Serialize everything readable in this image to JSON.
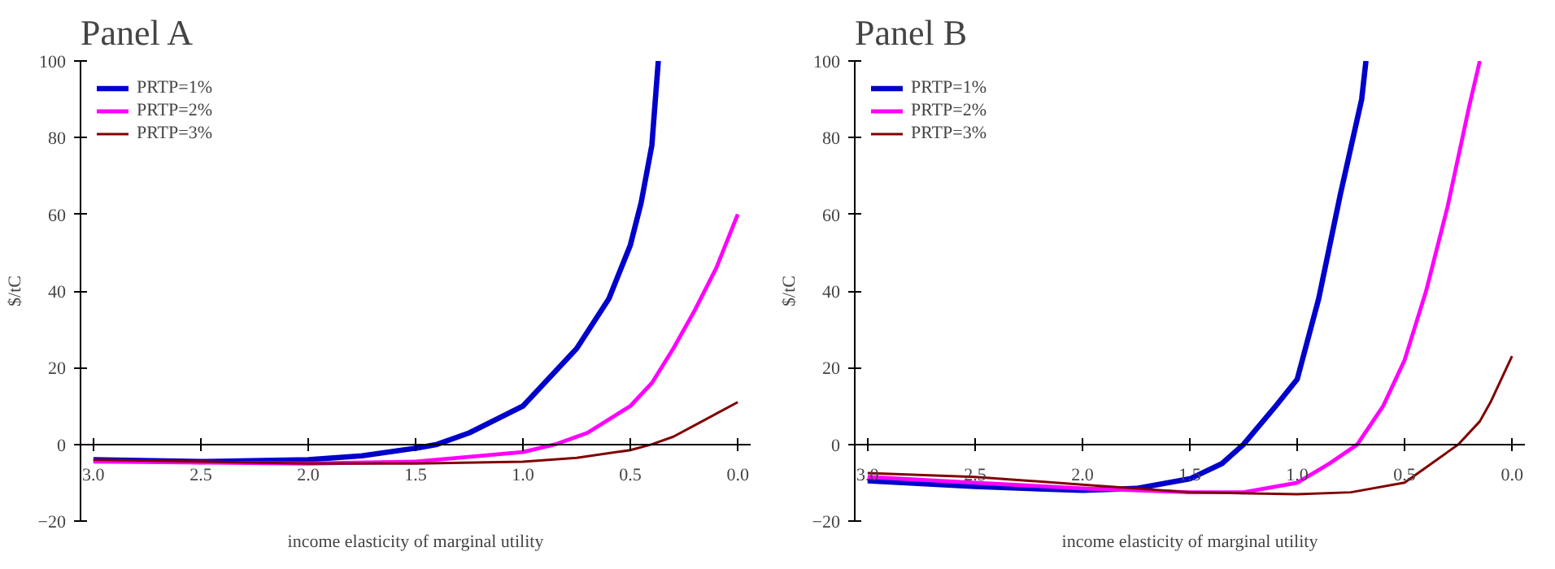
{
  "chart_data": [
    {
      "type": "line",
      "title": "Panel A",
      "xlabel": "income elasticity of marginal utility",
      "ylabel": "$/tC",
      "xlim": [
        3.06,
        -0.06
      ],
      "ylim": [
        -20,
        100
      ],
      "xticks": [
        {
          "value": 3.0,
          "label": "3.0"
        },
        2.5,
        {
          "value": 2.0,
          "label": "2.0"
        },
        1.5,
        {
          "value": 1.0,
          "label": "1.0"
        },
        0.5,
        {
          "value": 0.0,
          "label": "0.0"
        }
      ],
      "yticks": [
        -20,
        0,
        20,
        40,
        60,
        80,
        100
      ],
      "grid": false,
      "legend": "top left",
      "line_style": "solid",
      "marker": "none",
      "series": [
        {
          "name": "PRTP=1%",
          "color": "#0000cc",
          "x": [
            3.0,
            2.5,
            2.0,
            1.75,
            1.5,
            1.4,
            1.25,
            1.0,
            0.75,
            0.6,
            0.5,
            0.45,
            0.4,
            0.37
          ],
          "values": [
            -4,
            -4.5,
            -4,
            -3,
            -1,
            0,
            3,
            10,
            25,
            38,
            52,
            63,
            78,
            100
          ]
        },
        {
          "name": "PRTP=2%",
          "color": "#ff00ff",
          "x": [
            3.0,
            2.0,
            1.5,
            1.0,
            0.85,
            0.7,
            0.5,
            0.4,
            0.3,
            0.2,
            0.1,
            0.0
          ],
          "values": [
            -4.5,
            -5,
            -4.5,
            -2,
            0,
            3,
            10,
            16,
            25,
            35,
            46,
            60
          ]
        },
        {
          "name": "PRTP=3%",
          "color": "#800000",
          "x": [
            3.0,
            2.0,
            1.5,
            1.0,
            0.75,
            0.5,
            0.4,
            0.3,
            0.2,
            0.1,
            0.0
          ],
          "values": [
            -4,
            -5,
            -5,
            -4.5,
            -3.5,
            -1.5,
            0,
            2,
            5,
            8,
            11
          ]
        }
      ]
    },
    {
      "type": "line",
      "title": "Panel B",
      "xlabel": "income elasticity of marginal utility",
      "ylabel": "$/tC",
      "xlim": [
        3.06,
        -0.06
      ],
      "ylim": [
        -20,
        100
      ],
      "xticks": [
        {
          "value": 3.0,
          "label": "3.0"
        },
        2.5,
        {
          "value": 2.0,
          "label": "2.0"
        },
        1.5,
        {
          "value": 1.0,
          "label": "1.0"
        },
        0.5,
        {
          "value": 0.0,
          "label": "0.0"
        }
      ],
      "yticks": [
        -20,
        0,
        20,
        40,
        60,
        80,
        100
      ],
      "grid": false,
      "legend": "top left",
      "line_style": "solid",
      "marker": "none",
      "series": [
        {
          "name": "PRTP=1%",
          "color": "#0000cc",
          "x": [
            3.0,
            2.5,
            2.0,
            1.75,
            1.5,
            1.35,
            1.25,
            1.1,
            1.0,
            0.9,
            0.8,
            0.7,
            0.68
          ],
          "values": [
            -9.5,
            -11,
            -12,
            -11.5,
            -9,
            -5,
            0,
            10,
            17,
            38,
            65,
            90,
            100
          ]
        },
        {
          "name": "PRTP=2%",
          "color": "#ff00ff",
          "x": [
            3.0,
            2.5,
            2.0,
            1.5,
            1.25,
            1.0,
            0.85,
            0.72,
            0.6,
            0.5,
            0.4,
            0.3,
            0.2,
            0.15
          ],
          "values": [
            -8.5,
            -10,
            -11.5,
            -12.5,
            -12.5,
            -10,
            -5,
            0,
            10,
            22,
            40,
            62,
            88,
            100
          ]
        },
        {
          "name": "PRTP=3%",
          "color": "#800000",
          "x": [
            3.0,
            2.5,
            2.0,
            1.5,
            1.0,
            0.75,
            0.5,
            0.4,
            0.3,
            0.25,
            0.15,
            0.1,
            0.0
          ],
          "values": [
            -7.5,
            -8.5,
            -10.5,
            -12.5,
            -13,
            -12.5,
            -10,
            -6,
            -2,
            0,
            6,
            11,
            23
          ]
        }
      ]
    }
  ]
}
